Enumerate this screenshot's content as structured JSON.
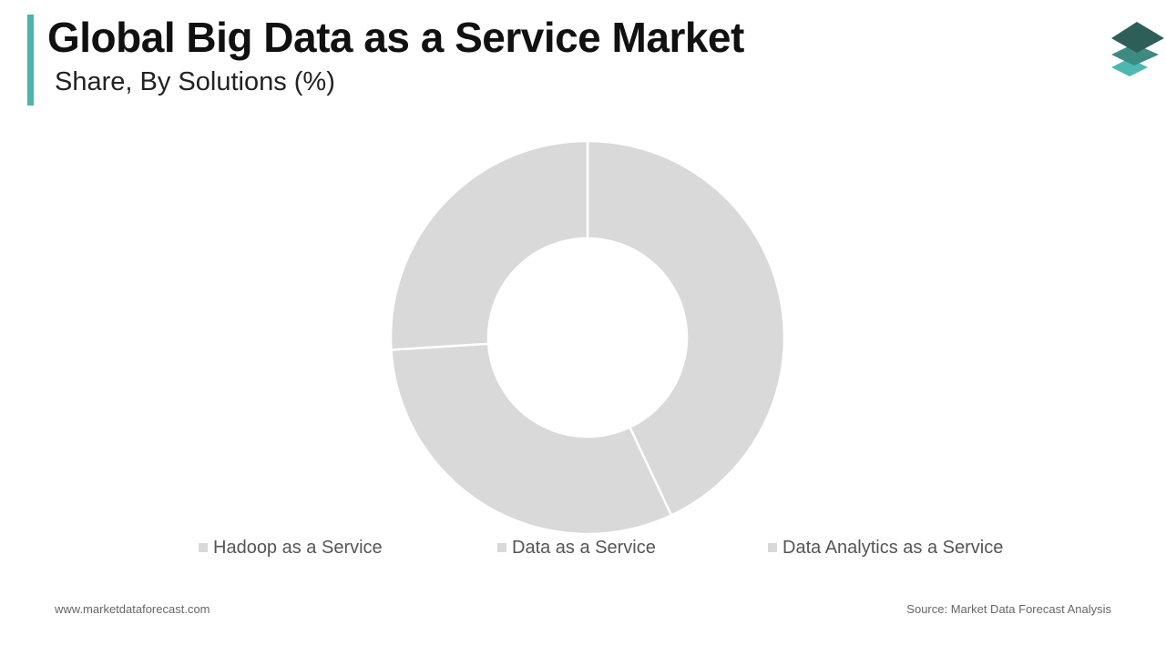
{
  "header": {
    "title": "Global Big Data as a Service Market",
    "subtitle": "Share, By Solutions (%)",
    "accent_color": "#4db3ad"
  },
  "logo": {
    "icon": "stacked-layers-logo-icon",
    "colors": [
      "#2e5e58",
      "#3d8a83",
      "#4db8b0"
    ]
  },
  "chart_data": {
    "type": "donut",
    "title": "",
    "categories": [
      "Hadoop as a Service",
      "Data as a Service",
      "Data Analytics as a Service"
    ],
    "values": [
      43,
      31,
      26
    ],
    "unit": "%",
    "slice_color": "#d9d9d9",
    "separator_color": "#ffffff",
    "legend_position": "bottom",
    "data_labels_shown": false
  },
  "footer": {
    "website": "www.marketdataforecast.com",
    "source": "Source: Market Data Forecast Analysis"
  }
}
